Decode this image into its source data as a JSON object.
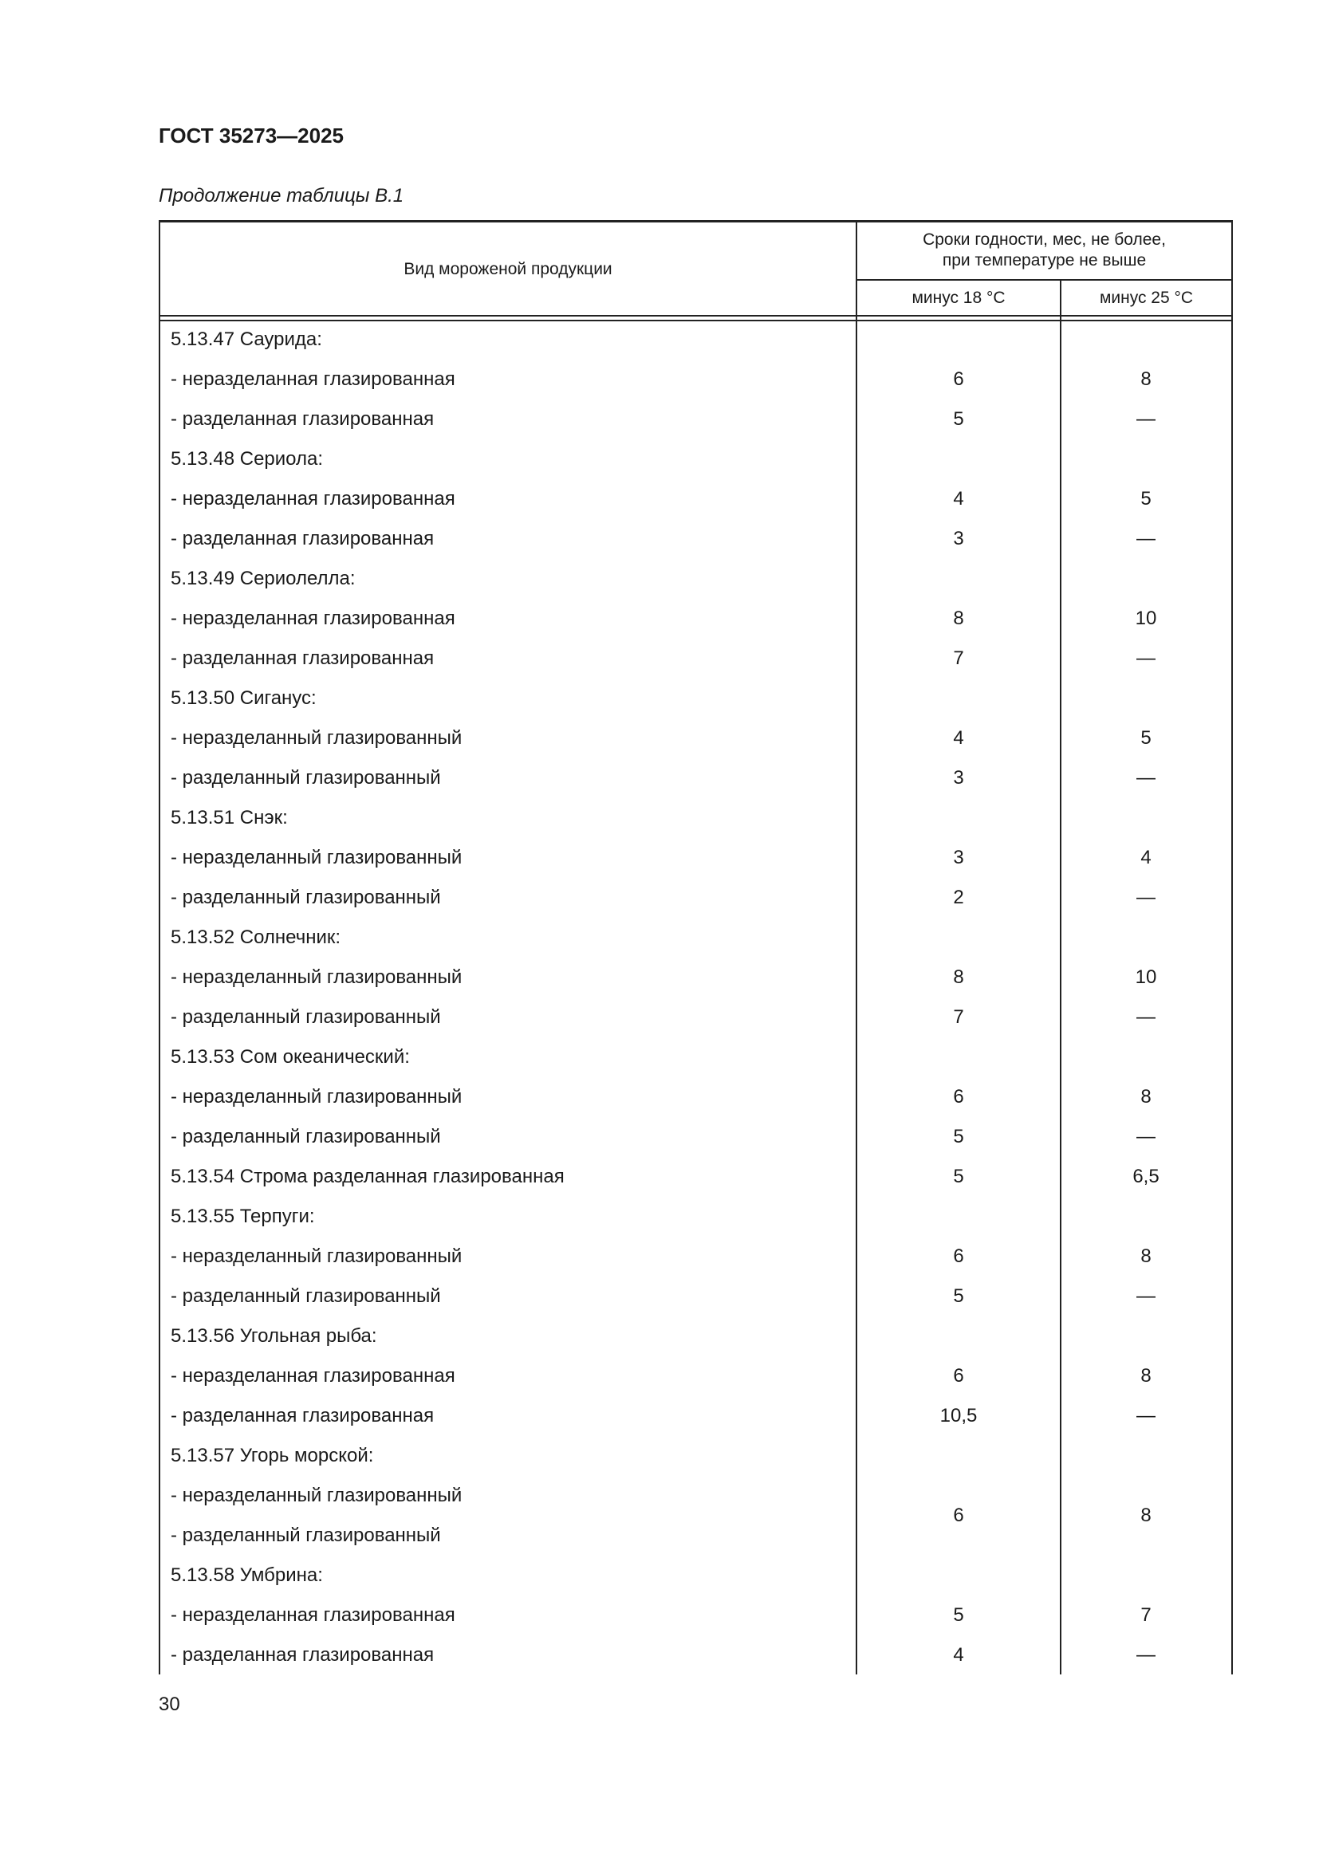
{
  "header": {
    "doc_code": "ГОСТ 35273—2025",
    "caption": "Продолжение таблицы В.1"
  },
  "table": {
    "columns": {
      "product": "Вид мороженой продукции",
      "group": "Сроки годности, мес, не более,\nпри температуре не выше",
      "t18": "минус 18 °С",
      "t25": "минус 25 °С"
    },
    "rows": [
      {
        "name": "5.13.47 Саурида:"
      },
      {
        "name": "- неразделанная глазированная",
        "t18": "6",
        "t25": "8"
      },
      {
        "name": "- разделанная глазированная",
        "t18": "5",
        "t25": "—"
      },
      {
        "name": "5.13.48 Сериола:"
      },
      {
        "name": "- неразделанная глазированная",
        "t18": "4",
        "t25": "5"
      },
      {
        "name": "- разделанная глазированная",
        "t18": "3",
        "t25": "—"
      },
      {
        "name": "5.13.49 Сериолелла:"
      },
      {
        "name": "- неразделанная глазированная",
        "t18": "8",
        "t25": "10"
      },
      {
        "name": "- разделанная глазированная",
        "t18": "7",
        "t25": "—"
      },
      {
        "name": "5.13.50 Сиганус:"
      },
      {
        "name": "- неразделанный глазированный",
        "t18": "4",
        "t25": "5"
      },
      {
        "name": "- разделанный глазированный",
        "t18": "3",
        "t25": "—"
      },
      {
        "name": "5.13.51 Снэк:"
      },
      {
        "name": "- неразделанный глазированный",
        "t18": "3",
        "t25": "4"
      },
      {
        "name": "- разделанный глазированный",
        "t18": "2",
        "t25": "—"
      },
      {
        "name": "5.13.52 Солнечник:"
      },
      {
        "name": "- неразделанный глазированный",
        "t18": "8",
        "t25": "10"
      },
      {
        "name": "- разделанный глазированный",
        "t18": "7",
        "t25": "—"
      },
      {
        "name": "5.13.53 Сом океанический:"
      },
      {
        "name": "- неразделанный глазированный",
        "t18": "6",
        "t25": "8"
      },
      {
        "name": "- разделанный глазированный",
        "t18": "5",
        "t25": "—"
      },
      {
        "name": "5.13.54 Строма разделанная глазированная",
        "t18": "5",
        "t25": "6,5"
      },
      {
        "name": "5.13.55 Терпуги:"
      },
      {
        "name": "- неразделанный глазированный",
        "t18": "6",
        "t25": "8"
      },
      {
        "name": "- разделанный глазированный",
        "t18": "5",
        "t25": "—"
      },
      {
        "name": "5.13.56 Угольная рыба:"
      },
      {
        "name": "- неразделанная глазированная",
        "t18": "6",
        "t25": "8"
      },
      {
        "name": "- разделанная глазированная",
        "t18": "10,5",
        "t25": "—"
      },
      {
        "name": "5.13.57 Угорь морской:"
      },
      {
        "name": "- неразделанный глазированный",
        "t18": "6",
        "t25": "8",
        "rowspan": 2
      },
      {
        "name": "- разделанный глазированный"
      },
      {
        "name": "5.13.58 Умбрина:"
      },
      {
        "name": "- неразделанная глазированная",
        "t18": "5",
        "t25": "7"
      },
      {
        "name": "- разделанная глазированная",
        "t18": "4",
        "t25": "—"
      }
    ]
  },
  "footer": {
    "page_number": "30"
  }
}
